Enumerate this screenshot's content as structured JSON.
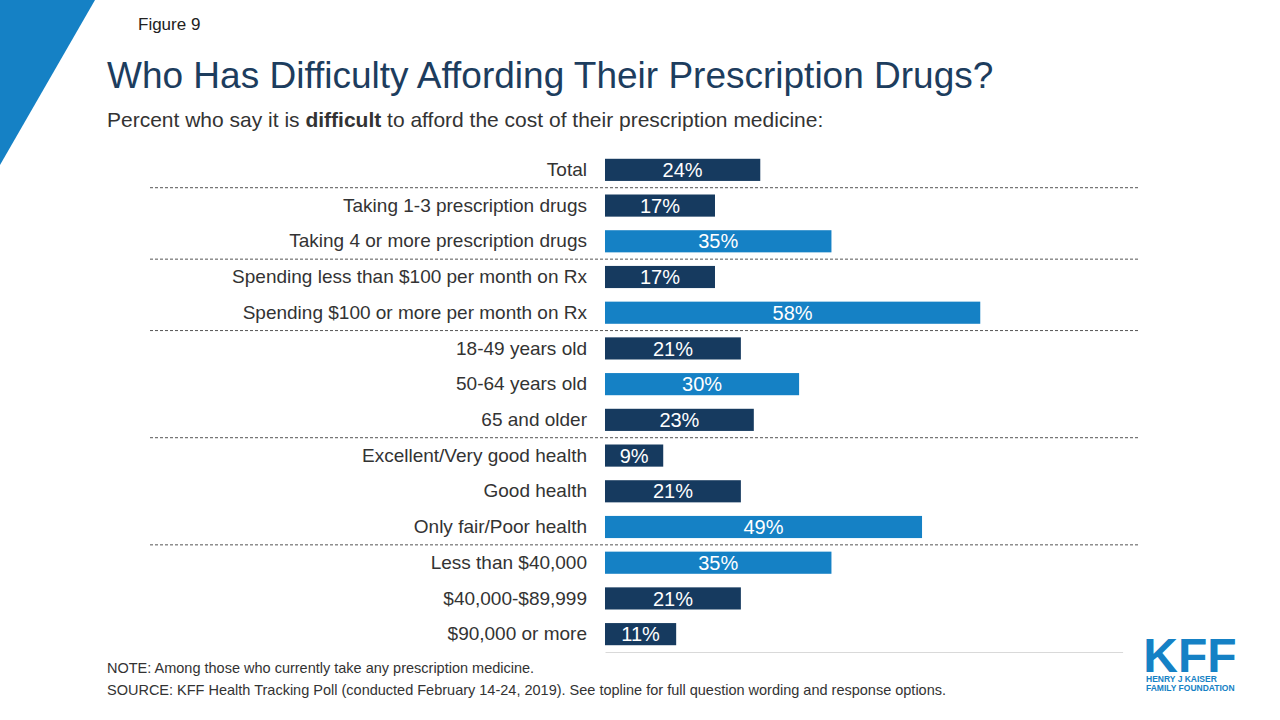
{
  "chart_data": {
    "type": "bar",
    "orientation": "horizontal",
    "figure_label": "Figure 9",
    "title": "Who Has Difficulty Affording Their Prescription Drugs?",
    "subtitle": [
      "Percent who say it is ",
      "difficult",
      " to afford the cost of their prescription medicine:"
    ],
    "categories": [
      "Total",
      "Taking 1-3 prescription drugs",
      "Taking 4 or more prescription drugs",
      "Spending less than $100 per month on Rx",
      "Spending $100 or more per month on Rx",
      "18-49 years old",
      "50-64 years old",
      "65 and older",
      "Excellent/Very good health",
      "Good health",
      "Only fair/Poor health",
      "Less than $40,000",
      "$40,000-$89,999",
      "$90,000 or more"
    ],
    "values": [
      24,
      17,
      35,
      17,
      58,
      21,
      30,
      23,
      9,
      21,
      49,
      35,
      21,
      11
    ],
    "value_labels": [
      "24%",
      "17%",
      "35%",
      "17%",
      "58%",
      "21%",
      "30%",
      "23%",
      "9%",
      "21%",
      "49%",
      "35%",
      "21%",
      "11%"
    ],
    "colors": [
      "#163a5f",
      "#163a5f",
      "#1581c5",
      "#163a5f",
      "#1581c5",
      "#163a5f",
      "#1581c5",
      "#163a5f",
      "#163a5f",
      "#163a5f",
      "#1581c5",
      "#1581c5",
      "#163a5f",
      "#163a5f"
    ],
    "xlim": [
      0,
      80
    ],
    "xticks": [],
    "data_labels": true,
    "tick_labels": "y",
    "grid": false,
    "notes": [
      "NOTE: Among those who currently take any prescription medicine.",
      "SOURCE: KFF Health Tracking Poll (conducted February 14-24, 2019). See topline for full question wording and response options."
    ],
    "logo": [
      "KFF",
      "HENRY J KAISER",
      "FAMILY FOUNDATION"
    ]
  }
}
